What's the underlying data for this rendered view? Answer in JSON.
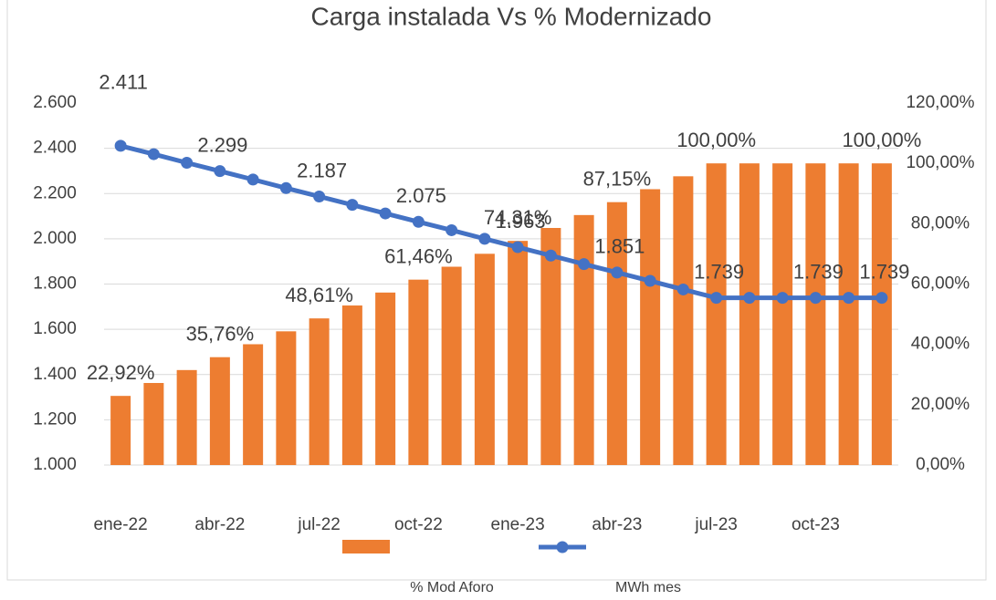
{
  "chart_data": {
    "type": "bar",
    "title": "Carga instalada Vs % Modernizado",
    "categories": [
      "ene-22",
      null,
      null,
      "abr-22",
      null,
      null,
      "jul-22",
      null,
      null,
      "oct-22",
      null,
      null,
      "ene-23",
      null,
      null,
      "abr-23",
      null,
      null,
      "jul-23",
      null,
      null,
      "oct-23",
      null,
      null
    ],
    "series": [
      {
        "name": "% Mod Aforo",
        "type": "bar",
        "axis": "y2",
        "color": "#ed7d31",
        "values": [
          22.92,
          27.2,
          31.49,
          35.76,
          40.05,
          44.33,
          48.61,
          52.89,
          57.18,
          61.46,
          65.74,
          70.03,
          74.31,
          78.59,
          82.87,
          87.15,
          91.44,
          95.72,
          100,
          100,
          100,
          100,
          100,
          100
        ],
        "value_labels": [
          "22,92%",
          null,
          null,
          "35,76%",
          null,
          null,
          "48,61%",
          null,
          null,
          "61,46%",
          null,
          null,
          "74,31%",
          null,
          null,
          "87,15%",
          null,
          null,
          "100,00%",
          null,
          null,
          null,
          null,
          "100,00%"
        ]
      },
      {
        "name": "MWh mes",
        "type": "line",
        "axis": "y",
        "color": "#4472c4",
        "values": [
          2411,
          2374,
          2336,
          2299,
          2262,
          2224,
          2187,
          2150,
          2112,
          2075,
          2038,
          2000,
          1963,
          1926,
          1888,
          1851,
          1814,
          1776,
          1739,
          1739,
          1739,
          1739,
          1739,
          1739
        ],
        "value_labels": [
          "2.411",
          null,
          null,
          "2.299",
          null,
          null,
          "2.187",
          null,
          null,
          "2.075",
          null,
          null,
          "1.963",
          null,
          null,
          "1.851",
          null,
          null,
          "1.739",
          null,
          null,
          "1.739",
          null,
          "1.739"
        ]
      }
    ],
    "ylim": [
      1000,
      2600
    ],
    "yticks": [
      {
        "value": 1000,
        "label": "1.000"
      },
      {
        "value": 1200,
        "label": "1.200"
      },
      {
        "value": 1400,
        "label": "1.400"
      },
      {
        "value": 1600,
        "label": "1.600"
      },
      {
        "value": 1800,
        "label": "1.800"
      },
      {
        "value": 2000,
        "label": "2.000"
      },
      {
        "value": 2200,
        "label": "2.200"
      },
      {
        "value": 2400,
        "label": "2.400"
      },
      {
        "value": 2600,
        "label": "2.600"
      }
    ],
    "y2lim": [
      0,
      120
    ],
    "y2ticks": [
      {
        "value": 0,
        "label": "0,00%"
      },
      {
        "value": 20,
        "label": "20,00%"
      },
      {
        "value": 40,
        "label": "40,00%"
      },
      {
        "value": 60,
        "label": "60,00%"
      },
      {
        "value": 80,
        "label": "80,00%"
      },
      {
        "value": 100,
        "label": "100,00%"
      },
      {
        "value": 120,
        "label": "120,00%"
      }
    ],
    "grid": true
  }
}
